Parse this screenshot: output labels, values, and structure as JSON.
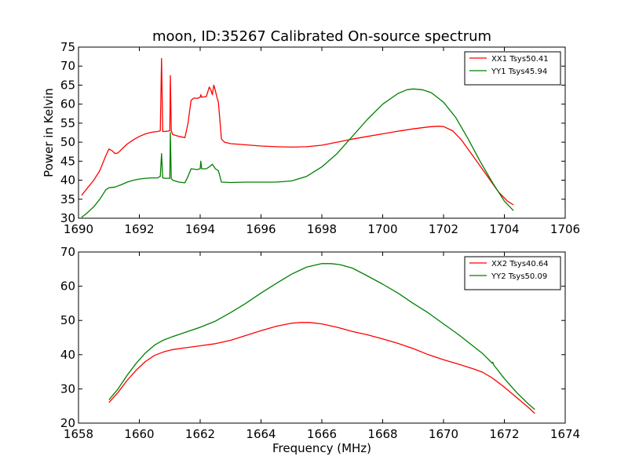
{
  "chart_data": [
    {
      "type": "line",
      "title": "moon, ID:35267 Calibrated On-source spectrum",
      "xlabel": "",
      "ylabel": "Power in Kelvin",
      "xlim": [
        1690,
        1706
      ],
      "ylim": [
        30,
        75
      ],
      "xticks": [
        "1690",
        "1692",
        "1694",
        "1696",
        "1698",
        "1700",
        "1702",
        "1704",
        "1706"
      ],
      "yticks": [
        "30",
        "35",
        "40",
        "45",
        "50",
        "55",
        "60",
        "65",
        "70",
        "75"
      ],
      "legend_position": "top-right",
      "grid": false,
      "series": [
        {
          "name": "XX1 Tsys50.41",
          "color": "#ff0000",
          "x": [
            1690.1,
            1690.3,
            1690.5,
            1690.7,
            1690.9,
            1691.0,
            1691.1,
            1691.2,
            1691.3,
            1691.4,
            1691.6,
            1691.8,
            1692.0,
            1692.2,
            1692.4,
            1692.6,
            1692.69,
            1692.73,
            1692.77,
            1692.85,
            1693.0,
            1693.02,
            1693.05,
            1693.1,
            1693.3,
            1693.5,
            1693.6,
            1693.7,
            1693.8,
            1693.9,
            1694.0,
            1694.02,
            1694.05,
            1694.2,
            1694.3,
            1694.35,
            1694.4,
            1694.45,
            1694.5,
            1694.55,
            1694.6,
            1694.7,
            1694.8,
            1695.0,
            1695.5,
            1696.0,
            1696.5,
            1697.0,
            1697.5,
            1698.0,
            1698.5,
            1699.0,
            1699.5,
            1700.0,
            1700.5,
            1701.0,
            1701.5,
            1701.8,
            1702.0,
            1702.3,
            1702.6,
            1703.0,
            1703.4,
            1703.8,
            1704.1,
            1704.3
          ],
          "y": [
            36,
            38,
            40,
            42.5,
            46.5,
            48.2,
            47.8,
            47.0,
            47.2,
            48.0,
            49.5,
            50.6,
            51.5,
            52.2,
            52.6,
            52.8,
            53.0,
            72.0,
            52.8,
            52.8,
            53.0,
            67.5,
            53.0,
            52.0,
            51.5,
            51.2,
            55.0,
            61.0,
            61.6,
            61.5,
            61.8,
            62.5,
            61.8,
            62.0,
            64.5,
            63.8,
            62.5,
            65.0,
            63.5,
            61.8,
            60.5,
            50.8,
            50.0,
            49.6,
            49.3,
            49.0,
            48.8,
            48.7,
            48.8,
            49.2,
            50.0,
            50.8,
            51.5,
            52.2,
            52.9,
            53.5,
            54.0,
            54.2,
            54.1,
            53.0,
            50.5,
            46.0,
            41.5,
            37.0,
            34.5,
            33.5
          ]
        },
        {
          "name": "YY1 Tsys45.94",
          "color": "#008000",
          "x": [
            1690.1,
            1690.3,
            1690.5,
            1690.7,
            1690.9,
            1691.0,
            1691.2,
            1691.4,
            1691.6,
            1691.8,
            1692.0,
            1692.2,
            1692.4,
            1692.6,
            1692.69,
            1692.73,
            1692.77,
            1692.85,
            1693.0,
            1693.02,
            1693.05,
            1693.1,
            1693.3,
            1693.5,
            1693.6,
            1693.7,
            1693.9,
            1694.0,
            1694.02,
            1694.05,
            1694.2,
            1694.3,
            1694.4,
            1694.5,
            1694.6,
            1694.7,
            1695.0,
            1695.5,
            1696.0,
            1696.5,
            1697.0,
            1697.5,
            1698.0,
            1698.5,
            1699.0,
            1699.5,
            1700.0,
            1700.5,
            1700.8,
            1701.0,
            1701.3,
            1701.6,
            1702.0,
            1702.4,
            1702.8,
            1703.2,
            1703.6,
            1704.0,
            1704.3
          ],
          "y": [
            30.2,
            31.5,
            33.0,
            35.0,
            37.5,
            38.0,
            38.2,
            38.8,
            39.5,
            40.0,
            40.3,
            40.5,
            40.6,
            40.6,
            41.0,
            47.0,
            40.6,
            40.5,
            40.5,
            52.5,
            40.4,
            40.0,
            39.5,
            39.3,
            41.0,
            43.0,
            42.8,
            43.0,
            45.0,
            43.0,
            43.0,
            43.5,
            44.2,
            43.0,
            42.5,
            39.5,
            39.4,
            39.5,
            39.5,
            39.5,
            39.8,
            41.0,
            43.5,
            47.0,
            51.5,
            56.0,
            60.0,
            62.8,
            63.8,
            64.0,
            63.8,
            63.0,
            60.5,
            56.5,
            51.0,
            45.0,
            39.5,
            34.5,
            32.0
          ]
        }
      ]
    },
    {
      "type": "line",
      "title": "",
      "xlabel": "Frequency (MHz)",
      "ylabel": "",
      "xlim": [
        1658,
        1674
      ],
      "ylim": [
        20,
        70
      ],
      "xticks": [
        "1658",
        "1660",
        "1662",
        "1664",
        "1666",
        "1668",
        "1670",
        "1672",
        "1674"
      ],
      "yticks": [
        "20",
        "30",
        "40",
        "50",
        "60",
        "70"
      ],
      "legend_position": "top-right",
      "grid": false,
      "series": [
        {
          "name": "XX2 Tsys40.64",
          "color": "#ff0000",
          "x": [
            1659.0,
            1659.3,
            1659.6,
            1659.9,
            1660.2,
            1660.5,
            1660.8,
            1661.1,
            1661.5,
            1662.0,
            1662.5,
            1663.0,
            1663.5,
            1664.0,
            1664.5,
            1665.0,
            1665.3,
            1665.6,
            1666.0,
            1666.5,
            1667.0,
            1667.5,
            1668.0,
            1668.5,
            1669.0,
            1669.5,
            1670.0,
            1670.5,
            1671.0,
            1671.3,
            1671.6,
            1672.0,
            1672.4,
            1672.8,
            1673.0
          ],
          "y": [
            26.0,
            29.0,
            32.5,
            35.5,
            38.0,
            39.8,
            40.8,
            41.5,
            42.0,
            42.6,
            43.2,
            44.2,
            45.6,
            47.0,
            48.3,
            49.2,
            49.4,
            49.4,
            49.0,
            48.0,
            46.8,
            45.8,
            44.6,
            43.3,
            41.8,
            40.0,
            38.5,
            37.2,
            35.8,
            34.8,
            33.2,
            30.5,
            27.5,
            24.5,
            22.8
          ]
        },
        {
          "name": "YY2 Tsys50.09",
          "color": "#008000",
          "x": [
            1659.0,
            1659.3,
            1659.6,
            1659.9,
            1660.2,
            1660.5,
            1660.8,
            1661.1,
            1661.5,
            1662.0,
            1662.5,
            1663.0,
            1663.5,
            1664.0,
            1664.5,
            1665.0,
            1665.5,
            1666.0,
            1666.3,
            1666.6,
            1667.0,
            1667.5,
            1668.0,
            1668.5,
            1669.0,
            1669.5,
            1670.0,
            1670.5,
            1671.0,
            1671.3,
            1671.6,
            1671.62,
            1671.65,
            1672.0,
            1672.4,
            1672.8,
            1673.0
          ],
          "y": [
            26.8,
            30.0,
            34.0,
            37.5,
            40.5,
            42.8,
            44.3,
            45.3,
            46.5,
            48.0,
            49.8,
            52.3,
            55.0,
            58.0,
            60.8,
            63.5,
            65.6,
            66.6,
            66.6,
            66.3,
            65.3,
            63.0,
            60.6,
            58.0,
            55.0,
            52.2,
            49.0,
            45.8,
            42.3,
            40.2,
            37.5,
            37.8,
            37.0,
            33.0,
            29.0,
            25.5,
            24.0
          ]
        }
      ]
    }
  ]
}
